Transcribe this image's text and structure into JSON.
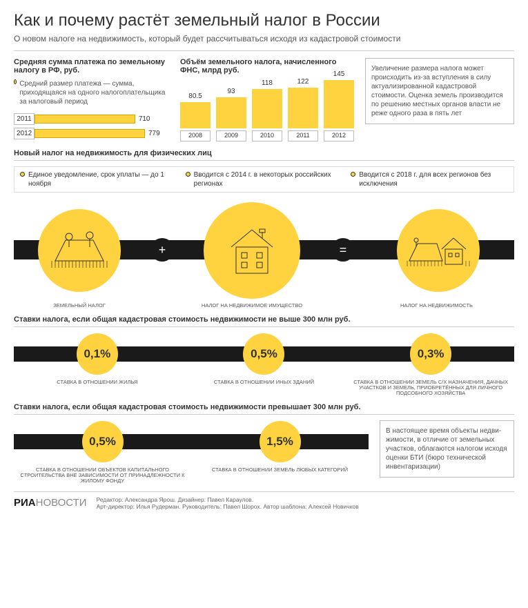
{
  "header": {
    "title": "Как и почему растёт земельный налог в России",
    "subtitle": "О новом налоге на недвижимость, который будет рассчитываться исходя из кадастровой стоимости"
  },
  "payment": {
    "title": "Средняя сумма платежа по земельному налогу в РФ, руб.",
    "legend": "Средний размер платежа — сумма, приходящаяся на одного налого­плательщика за налоговый период",
    "rows": [
      {
        "year": "2011",
        "value": 710
      },
      {
        "year": "2012",
        "value": 779
      }
    ],
    "max": 779,
    "bar_color": "#ffd23f"
  },
  "volume": {
    "title": "Объём земельного налога, начисленного ФНС, млрд руб.",
    "bars": [
      {
        "year": "2008",
        "value": 80.5
      },
      {
        "year": "2009",
        "value": 93
      },
      {
        "year": "2010",
        "value": 118
      },
      {
        "year": "2011",
        "value": 122
      },
      {
        "year": "2012",
        "value": 145
      }
    ],
    "max": 145,
    "bar_color": "#ffd23f"
  },
  "increase_note": "Увеличение размера налога может происходить из-за вступления в силу актуализированной кадастровой стоимости. Оценка земель производится по решению местных органов власти не реже одного раза в пять лет",
  "new_tax": {
    "title": "Новый налог на недвижимость для физических лиц",
    "bullets": [
      "Единое уведомление, срок уплаты — до 1 ноября",
      "Вводится с 2014 г. в некоторых российских регионах",
      "Вводится с 2018 г. для всех регионов без исключения"
    ],
    "icons": [
      {
        "label": "ЗЕМЕЛЬНЫЙ НАЛОГ"
      },
      {
        "label": "НАЛОГ НА НЕДВИЖИМОЕ ИМУЩЕСТВО"
      },
      {
        "label": "НАЛОГ НА НЕДВИЖИМОСТЬ"
      }
    ]
  },
  "rates_under": {
    "title": "Ставки налога, если общая кадастровая стоимость недвижимости не выше 300 млн руб.",
    "items": [
      {
        "pct": "0,1%",
        "label": "СТАВКА В ОТНОШЕНИИ ЖИЛЬЯ"
      },
      {
        "pct": "0,5%",
        "label": "СТАВКА В ОТНОШЕНИИ ИНЫХ ЗДАНИЙ"
      },
      {
        "pct": "0,3%",
        "label": "СТАВКА В ОТНОШЕНИИ ЗЕМЕЛЬ С/Х НАЗНАЧЕНИЯ, ДАЧНЫХ УЧАСТКОВ И ЗЕМЕЛЬ, ПРИОБРЕТЁННЫХ ДЛЯ ЛИЧНОГО ПОДСОБНОГО ХОЗЯЙСТВА"
      }
    ]
  },
  "rates_over": {
    "title": "Ставки налога, если общая кадастровая стоимость недвижимости превышает 300 млн руб.",
    "items": [
      {
        "pct": "0,5%",
        "label": "СТАВКА В ОТНОШЕНИИ ОБЪЕКТОВ КАПИТАЛЬНОГО СТРОИТЕЛЬСТВА ВНЕ ЗАВИСИМОСТИ ОТ ПРИНАДЛЕЖНОСТИ К ЖИЛОМУ ФОНДУ"
      },
      {
        "pct": "1,5%",
        "label": "СТАВКА В ОТНОШЕНИИ ЗЕМЕЛЬ ЛЮБЫХ КАТЕГОРИЙ"
      }
    ],
    "note": "В настоящее время объекты недви­жимости, в отличие от земельных участков, облагаются налогом исходя оценки БТИ (бюро технической инвентаризации)"
  },
  "footer": {
    "logo_ria": "РИА",
    "logo_news": "НОВОСТИ",
    "editor": "Редактор: Александра Ярош. Дизайнер: Павел Караулов.",
    "art": "Арт-директор: Илья Рудерман. Руководитель: Павел Шорох. Автор шаблона: Алексей Новичков"
  },
  "colors": {
    "accent": "#ffd23f",
    "black": "#1a1a1a",
    "text": "#333333"
  }
}
